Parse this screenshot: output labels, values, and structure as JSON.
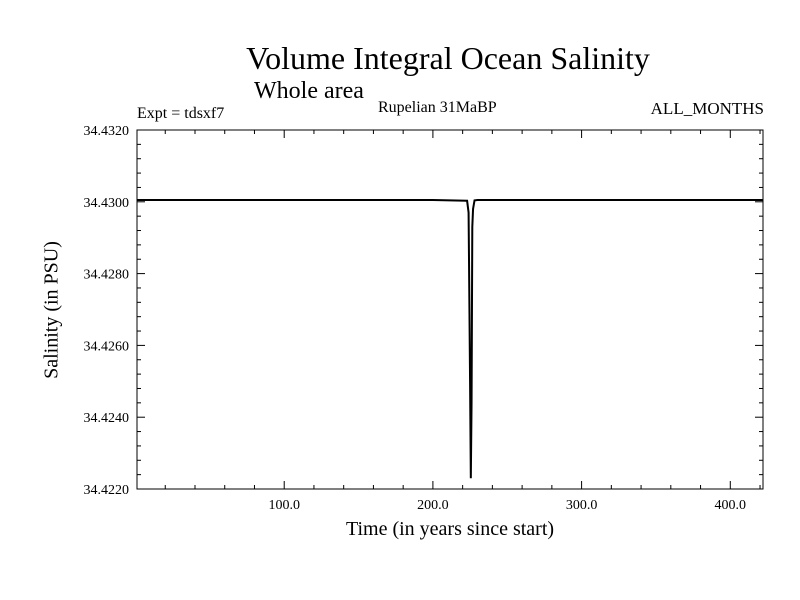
{
  "header": {
    "title": "Volume Integral Ocean Salinity",
    "subtitle": "Whole area",
    "experiment": "Expt = tdsxf7",
    "period": "Rupelian  31MaBP",
    "months": "ALL_MONTHS"
  },
  "chart_data": {
    "type": "line",
    "title": "Volume Integral Ocean Salinity",
    "xlabel": "Time (in years since start)",
    "ylabel": "Salinity (in PSU)",
    "xlim": [
      1,
      422
    ],
    "ylim": [
      34.422,
      34.432
    ],
    "x_ticks": [
      100,
      200,
      300,
      400
    ],
    "x_tick_labels": [
      "100.0",
      "200.0",
      "300.0",
      "400.0"
    ],
    "y_ticks": [
      34.422,
      34.424,
      34.426,
      34.428,
      34.43,
      34.432
    ],
    "y_tick_labels": [
      "34.4220",
      "34.4240",
      "34.4260",
      "34.4280",
      "34.4300",
      "34.4320"
    ],
    "grid": false,
    "series": [
      {
        "color": "#000000",
        "x": [
          1,
          50,
          100,
          150,
          200,
          223,
          224,
          225,
          225.5,
          226,
          226.5,
          227,
          228,
          230,
          250,
          300,
          350,
          400,
          422
        ],
        "y": [
          34.43005,
          34.43005,
          34.43005,
          34.43005,
          34.43005,
          34.43003,
          34.4297,
          34.425,
          34.4223,
          34.4244,
          34.4293,
          34.4298,
          34.43004,
          34.43005,
          34.43005,
          34.43005,
          34.43005,
          34.43005,
          34.43005
        ]
      }
    ]
  }
}
